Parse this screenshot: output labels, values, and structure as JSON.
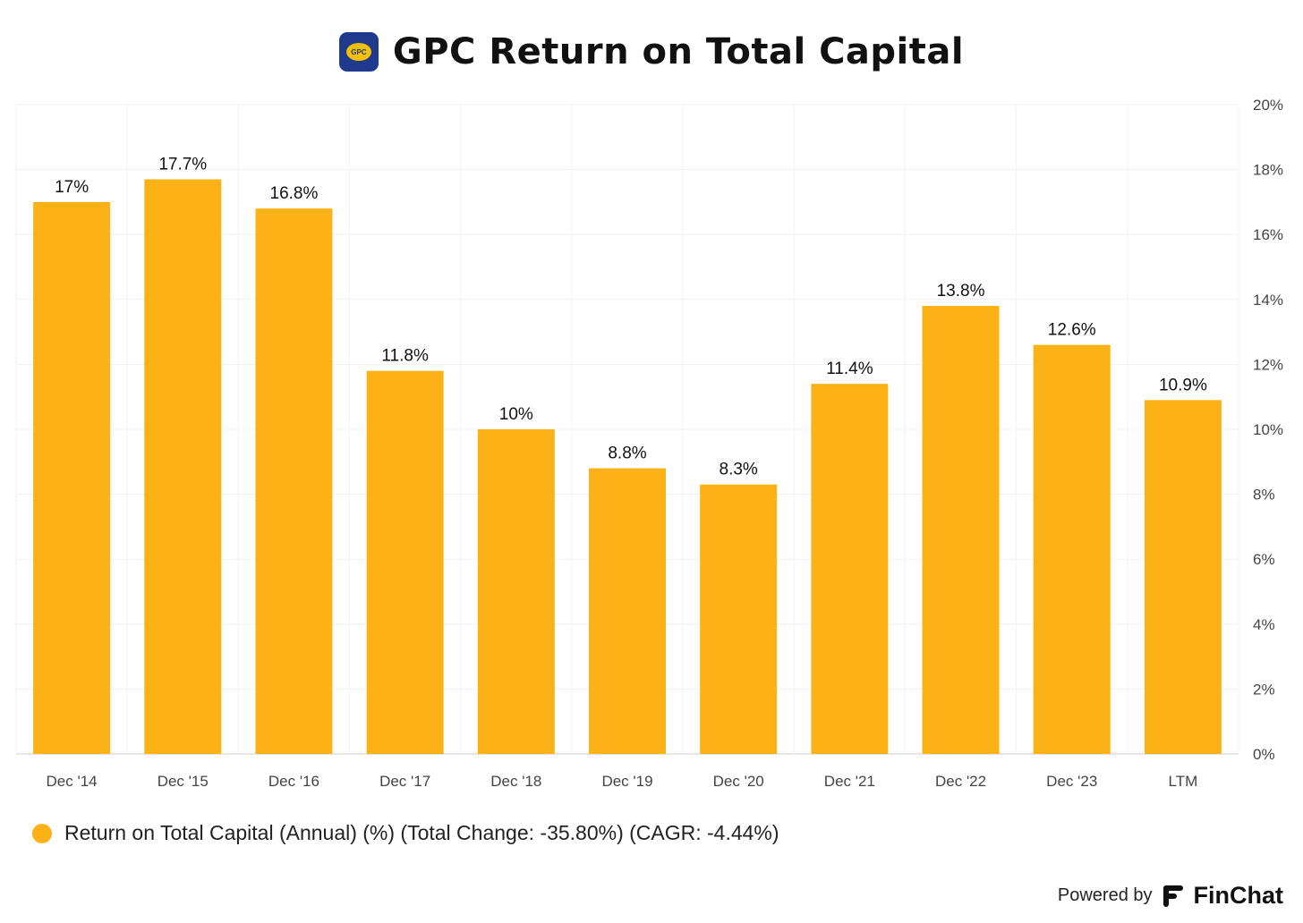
{
  "header": {
    "title": "GPC Return on Total Capital",
    "logo_text": "GPC"
  },
  "chart_data": {
    "type": "bar",
    "title": "GPC Return on Total Capital",
    "categories": [
      "Dec '14",
      "Dec '15",
      "Dec '16",
      "Dec '17",
      "Dec '18",
      "Dec '19",
      "Dec '20",
      "Dec '21",
      "Dec '22",
      "Dec '23",
      "LTM"
    ],
    "series": [
      {
        "name": "Return on Total Capital (Annual) (%)",
        "values": [
          17,
          17.7,
          16.8,
          11.8,
          10,
          8.8,
          8.3,
          11.4,
          13.8,
          12.6,
          10.9
        ],
        "labels": [
          "17%",
          "17.7%",
          "16.8%",
          "11.8%",
          "10%",
          "8.8%",
          "8.3%",
          "11.4%",
          "13.8%",
          "12.6%",
          "10.9%"
        ],
        "color": "#fbb216"
      }
    ],
    "y_ticks": [
      "0%",
      "2%",
      "4%",
      "6%",
      "8%",
      "10%",
      "12%",
      "14%",
      "16%",
      "18%",
      "20%"
    ],
    "ylim": [
      0,
      20
    ],
    "y_axis_side": "right",
    "grid": true,
    "legend_position": "bottom-left"
  },
  "legend": {
    "text": "Return on Total Capital (Annual) (%) (Total Change: -35.80%) (CAGR: -4.44%)",
    "color": "#fbb216"
  },
  "footer": {
    "powered_by": "Powered by",
    "brand": "FinChat"
  }
}
